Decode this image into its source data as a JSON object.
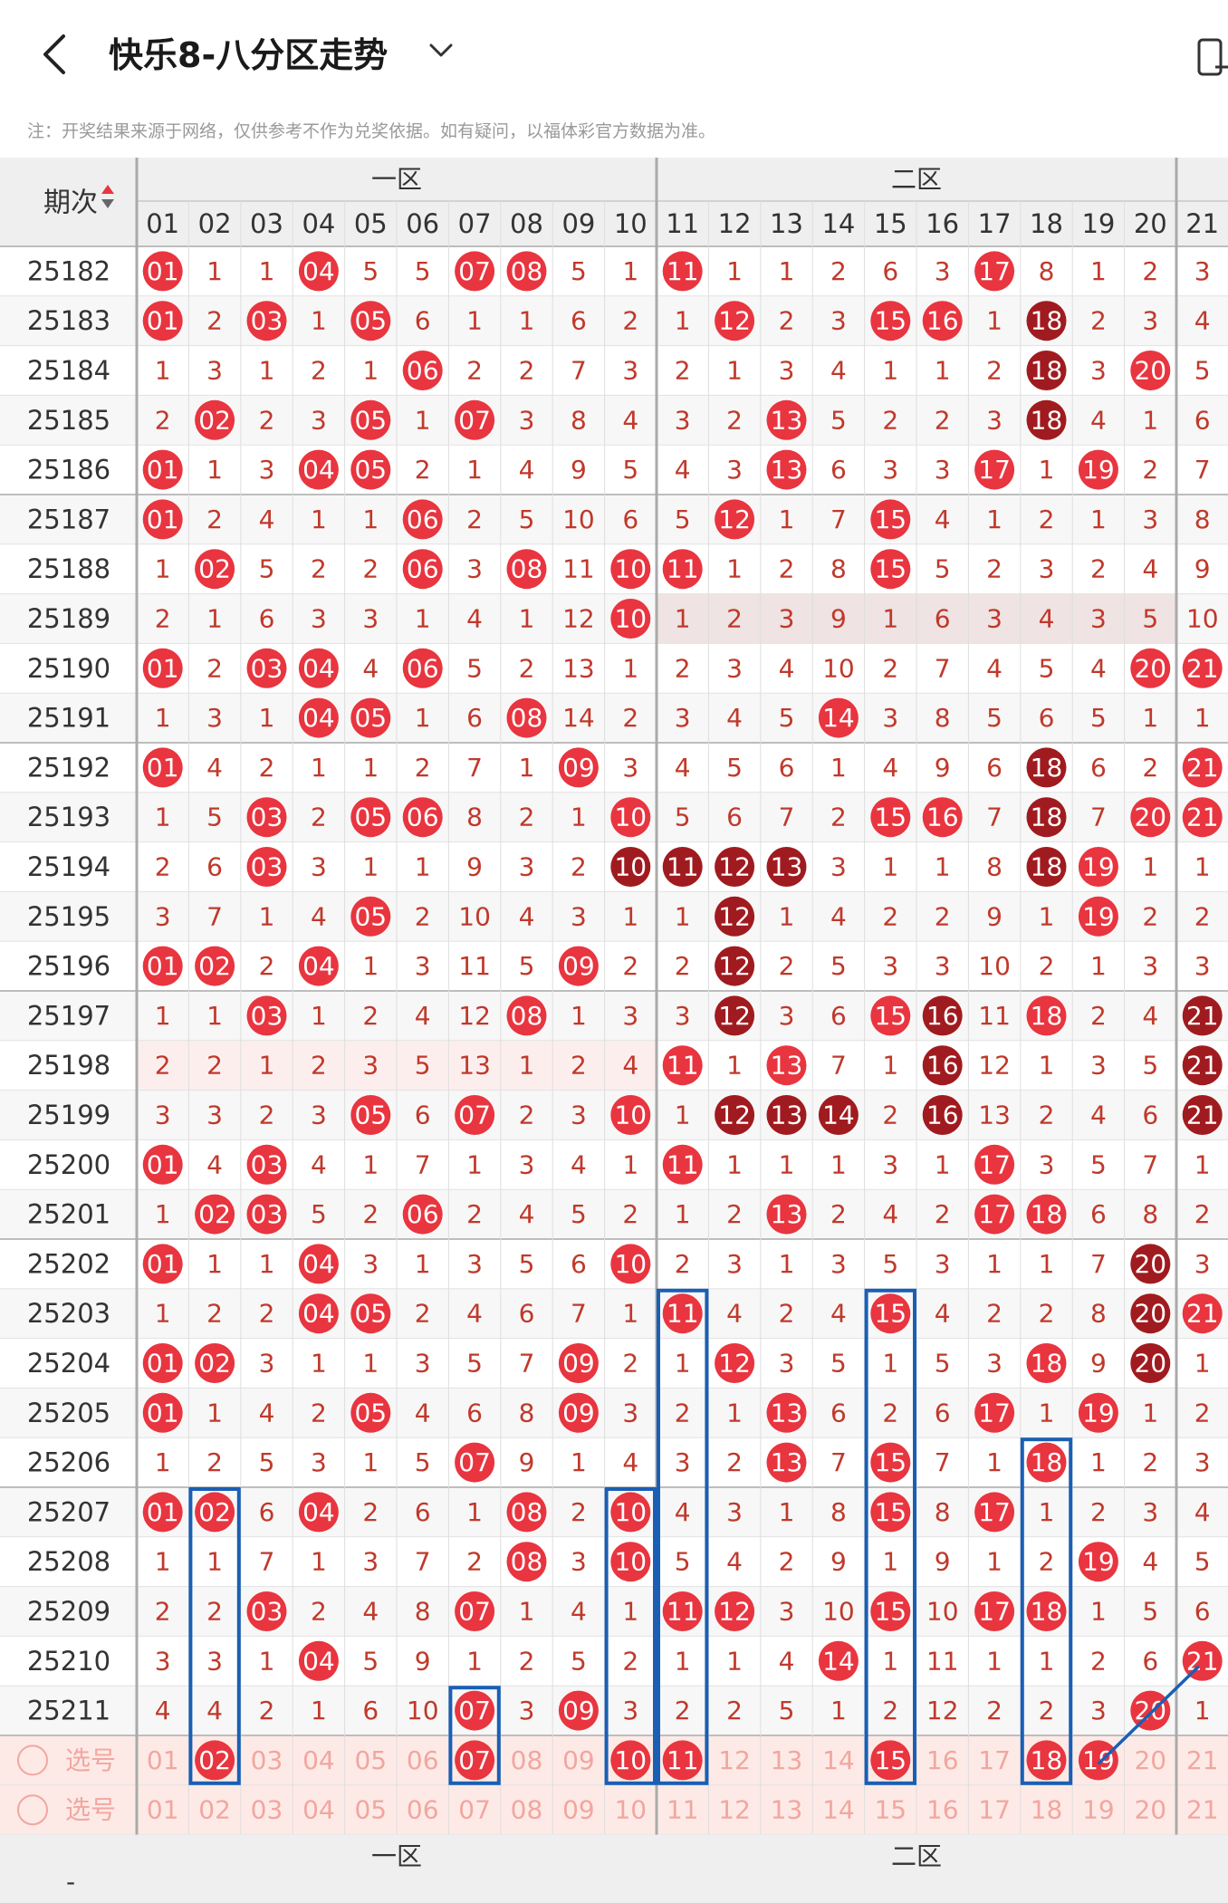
{
  "app": {
    "title": "快乐8-八分区走势",
    "notice": "注：开奖结果来源于网络，仅供参考不作为兑奖依据。如有疑问，以福体彩官方数据为准。"
  },
  "table": {
    "period_header": "期次",
    "zones": [
      "一区",
      "二区"
    ],
    "columns": [
      "01",
      "02",
      "03",
      "04",
      "05",
      "06",
      "07",
      "08",
      "09",
      "10",
      "11",
      "12",
      "13",
      "14",
      "15",
      "16",
      "17",
      "18",
      "19",
      "20",
      "21"
    ],
    "colors": {
      "hit": "#e8353f",
      "hot": "#a01b1f",
      "miss_text": "#c0392b",
      "grid": "#d9d9d9",
      "header_bg": "#efefef",
      "select_bg": "#fdeae6",
      "frame": "#1a5fb4"
    },
    "rows": [
      {
        "period": "25182",
        "cells": [
          "H:01",
          "1",
          "1",
          "H:04",
          "5",
          "5",
          "H:07",
          "H:08",
          "5",
          "1",
          "H:11",
          "1",
          "1",
          "2",
          "6",
          "3",
          "H:17",
          "8",
          "1",
          "2",
          "3"
        ]
      },
      {
        "period": "25183",
        "cells": [
          "H:01",
          "2",
          "H:03",
          "1",
          "H:05",
          "6",
          "1",
          "1",
          "6",
          "2",
          "1",
          "H:12",
          "2",
          "3",
          "H:15",
          "H:16",
          "1",
          "D:18",
          "2",
          "3",
          "4"
        ]
      },
      {
        "period": "25184",
        "cells": [
          "1",
          "3",
          "1",
          "2",
          "1",
          "H:06",
          "2",
          "2",
          "7",
          "3",
          "2",
          "1",
          "3",
          "4",
          "1",
          "1",
          "2",
          "D:18",
          "3",
          "H:20",
          "5"
        ]
      },
      {
        "period": "25185",
        "cells": [
          "2",
          "H:02",
          "2",
          "3",
          "H:05",
          "1",
          "H:07",
          "3",
          "8",
          "4",
          "3",
          "2",
          "H:13",
          "5",
          "2",
          "2",
          "3",
          "D:18",
          "4",
          "1",
          "6"
        ]
      },
      {
        "period": "25186",
        "cells": [
          "H:01",
          "1",
          "3",
          "H:04",
          "H:05",
          "2",
          "1",
          "4",
          "9",
          "5",
          "4",
          "3",
          "H:13",
          "6",
          "3",
          "3",
          "H:17",
          "1",
          "H:19",
          "2",
          "7"
        ]
      },
      {
        "period": "25187",
        "cells": [
          "H:01",
          "2",
          "4",
          "1",
          "1",
          "H:06",
          "2",
          "5",
          "10",
          "6",
          "5",
          "H:12",
          "1",
          "7",
          "H:15",
          "4",
          "1",
          "2",
          "1",
          "3",
          "8"
        ]
      },
      {
        "period": "25188",
        "cells": [
          "1",
          "H:02",
          "5",
          "2",
          "2",
          "H:06",
          "3",
          "H:08",
          "11",
          "H:10",
          "H:11",
          "1",
          "2",
          "8",
          "H:15",
          "5",
          "2",
          "3",
          "2",
          "4",
          "9"
        ]
      },
      {
        "period": "25189",
        "cells": [
          "2",
          "1",
          "6",
          "3",
          "3",
          "1",
          "4",
          "1",
          "12",
          "H:10",
          "1",
          "2",
          "3",
          "9",
          "1",
          "6",
          "3",
          "4",
          "3",
          "5",
          "10"
        ]
      },
      {
        "period": "25190",
        "cells": [
          "H:01",
          "2",
          "H:03",
          "H:04",
          "4",
          "H:06",
          "5",
          "2",
          "13",
          "1",
          "2",
          "3",
          "4",
          "10",
          "2",
          "7",
          "4",
          "5",
          "4",
          "H:20",
          "H:21"
        ]
      },
      {
        "period": "25191",
        "cells": [
          "1",
          "3",
          "1",
          "H:04",
          "H:05",
          "1",
          "6",
          "H:08",
          "14",
          "2",
          "3",
          "4",
          "5",
          "H:14",
          "3",
          "8",
          "5",
          "6",
          "5",
          "1",
          "1"
        ]
      },
      {
        "period": "25192",
        "cells": [
          "H:01",
          "4",
          "2",
          "1",
          "1",
          "2",
          "7",
          "1",
          "H:09",
          "3",
          "4",
          "5",
          "6",
          "1",
          "4",
          "9",
          "6",
          "D:18",
          "6",
          "2",
          "H:21"
        ]
      },
      {
        "period": "25193",
        "cells": [
          "1",
          "5",
          "H:03",
          "2",
          "H:05",
          "H:06",
          "8",
          "2",
          "1",
          "H:10",
          "5",
          "6",
          "7",
          "2",
          "H:15",
          "H:16",
          "7",
          "D:18",
          "7",
          "H:20",
          "H:21"
        ]
      },
      {
        "period": "25194",
        "cells": [
          "2",
          "6",
          "H:03",
          "3",
          "1",
          "1",
          "9",
          "3",
          "2",
          "D:10",
          "D:11",
          "D:12",
          "D:13",
          "3",
          "1",
          "1",
          "8",
          "D:18",
          "H:19",
          "1",
          "1"
        ]
      },
      {
        "period": "25195",
        "cells": [
          "3",
          "7",
          "1",
          "4",
          "H:05",
          "2",
          "10",
          "4",
          "3",
          "1",
          "1",
          "D:12",
          "1",
          "4",
          "2",
          "2",
          "9",
          "1",
          "H:19",
          "2",
          "2"
        ]
      },
      {
        "period": "25196",
        "cells": [
          "H:01",
          "H:02",
          "2",
          "H:04",
          "1",
          "3",
          "11",
          "5",
          "H:09",
          "2",
          "2",
          "D:12",
          "2",
          "5",
          "3",
          "3",
          "10",
          "2",
          "1",
          "3",
          "3"
        ]
      },
      {
        "period": "25197",
        "cells": [
          "1",
          "1",
          "H:03",
          "1",
          "2",
          "4",
          "12",
          "H:08",
          "1",
          "3",
          "3",
          "D:12",
          "3",
          "6",
          "H:15",
          "D:16",
          "11",
          "H:18",
          "2",
          "4",
          "D:21"
        ]
      },
      {
        "period": "25198",
        "cells": [
          "2",
          "2",
          "1",
          "2",
          "3",
          "5",
          "13",
          "1",
          "2",
          "4",
          "H:11",
          "1",
          "H:13",
          "7",
          "1",
          "D:16",
          "12",
          "1",
          "3",
          "5",
          "D:21"
        ]
      },
      {
        "period": "25199",
        "cells": [
          "3",
          "3",
          "2",
          "3",
          "H:05",
          "6",
          "H:07",
          "2",
          "3",
          "H:10",
          "1",
          "D:12",
          "D:13",
          "D:14",
          "2",
          "D:16",
          "13",
          "2",
          "4",
          "6",
          "D:21"
        ]
      },
      {
        "period": "25200",
        "cells": [
          "H:01",
          "4",
          "H:03",
          "4",
          "1",
          "7",
          "1",
          "3",
          "4",
          "1",
          "H:11",
          "1",
          "1",
          "1",
          "3",
          "1",
          "H:17",
          "3",
          "5",
          "7",
          "1"
        ]
      },
      {
        "period": "25201",
        "cells": [
          "1",
          "H:02",
          "H:03",
          "5",
          "2",
          "H:06",
          "2",
          "4",
          "5",
          "2",
          "1",
          "2",
          "H:13",
          "2",
          "4",
          "2",
          "H:17",
          "H:18",
          "6",
          "8",
          "2"
        ]
      },
      {
        "period": "25202",
        "cells": [
          "H:01",
          "1",
          "1",
          "H:04",
          "3",
          "1",
          "3",
          "5",
          "6",
          "H:10",
          "2",
          "3",
          "1",
          "3",
          "5",
          "3",
          "1",
          "1",
          "7",
          "D:20",
          "3"
        ]
      },
      {
        "period": "25203",
        "cells": [
          "1",
          "2",
          "2",
          "H:04",
          "H:05",
          "2",
          "4",
          "6",
          "7",
          "1",
          "H:11",
          "4",
          "2",
          "4",
          "H:15",
          "4",
          "2",
          "2",
          "8",
          "D:20",
          "H:21"
        ]
      },
      {
        "period": "25204",
        "cells": [
          "H:01",
          "H:02",
          "3",
          "1",
          "1",
          "3",
          "5",
          "7",
          "H:09",
          "2",
          "1",
          "H:12",
          "3",
          "5",
          "1",
          "5",
          "3",
          "H:18",
          "9",
          "D:20",
          "1"
        ]
      },
      {
        "period": "25205",
        "cells": [
          "H:01",
          "1",
          "4",
          "2",
          "H:05",
          "4",
          "6",
          "8",
          "H:09",
          "3",
          "2",
          "1",
          "H:13",
          "6",
          "2",
          "6",
          "H:17",
          "1",
          "H:19",
          "1",
          "2"
        ]
      },
      {
        "period": "25206",
        "cells": [
          "1",
          "2",
          "5",
          "3",
          "1",
          "5",
          "H:07",
          "9",
          "1",
          "4",
          "3",
          "2",
          "H:13",
          "7",
          "H:15",
          "7",
          "1",
          "H:18",
          "1",
          "2",
          "3"
        ]
      },
      {
        "period": "25207",
        "cells": [
          "H:01",
          "H:02",
          "6",
          "H:04",
          "2",
          "6",
          "1",
          "H:08",
          "2",
          "H:10",
          "4",
          "3",
          "1",
          "8",
          "H:15",
          "8",
          "H:17",
          "1",
          "2",
          "3",
          "4"
        ]
      },
      {
        "period": "25208",
        "cells": [
          "1",
          "1",
          "7",
          "1",
          "3",
          "7",
          "2",
          "H:08",
          "3",
          "H:10",
          "5",
          "4",
          "2",
          "9",
          "1",
          "9",
          "1",
          "2",
          "H:19",
          "4",
          "5"
        ]
      },
      {
        "period": "25209",
        "cells": [
          "2",
          "2",
          "H:03",
          "2",
          "4",
          "8",
          "H:07",
          "1",
          "4",
          "1",
          "H:11",
          "H:12",
          "3",
          "10",
          "H:15",
          "10",
          "H:17",
          "H:18",
          "1",
          "5",
          "6"
        ]
      },
      {
        "period": "25210",
        "cells": [
          "3",
          "3",
          "1",
          "H:04",
          "5",
          "9",
          "1",
          "2",
          "5",
          "2",
          "1",
          "1",
          "4",
          "H:14",
          "1",
          "11",
          "1",
          "1",
          "2",
          "6",
          "H:21"
        ]
      },
      {
        "period": "25211",
        "cells": [
          "4",
          "4",
          "2",
          "1",
          "6",
          "10",
          "H:07",
          "3",
          "H:09",
          "3",
          "2",
          "2",
          "5",
          "1",
          "2",
          "12",
          "2",
          "2",
          "3",
          "H:20",
          "1"
        ]
      }
    ],
    "select_rows": [
      {
        "label": "选号",
        "selected": [
          "02",
          "07",
          "10",
          "11",
          "15",
          "18",
          "19"
        ]
      },
      {
        "label": "选号",
        "selected": []
      }
    ]
  }
}
